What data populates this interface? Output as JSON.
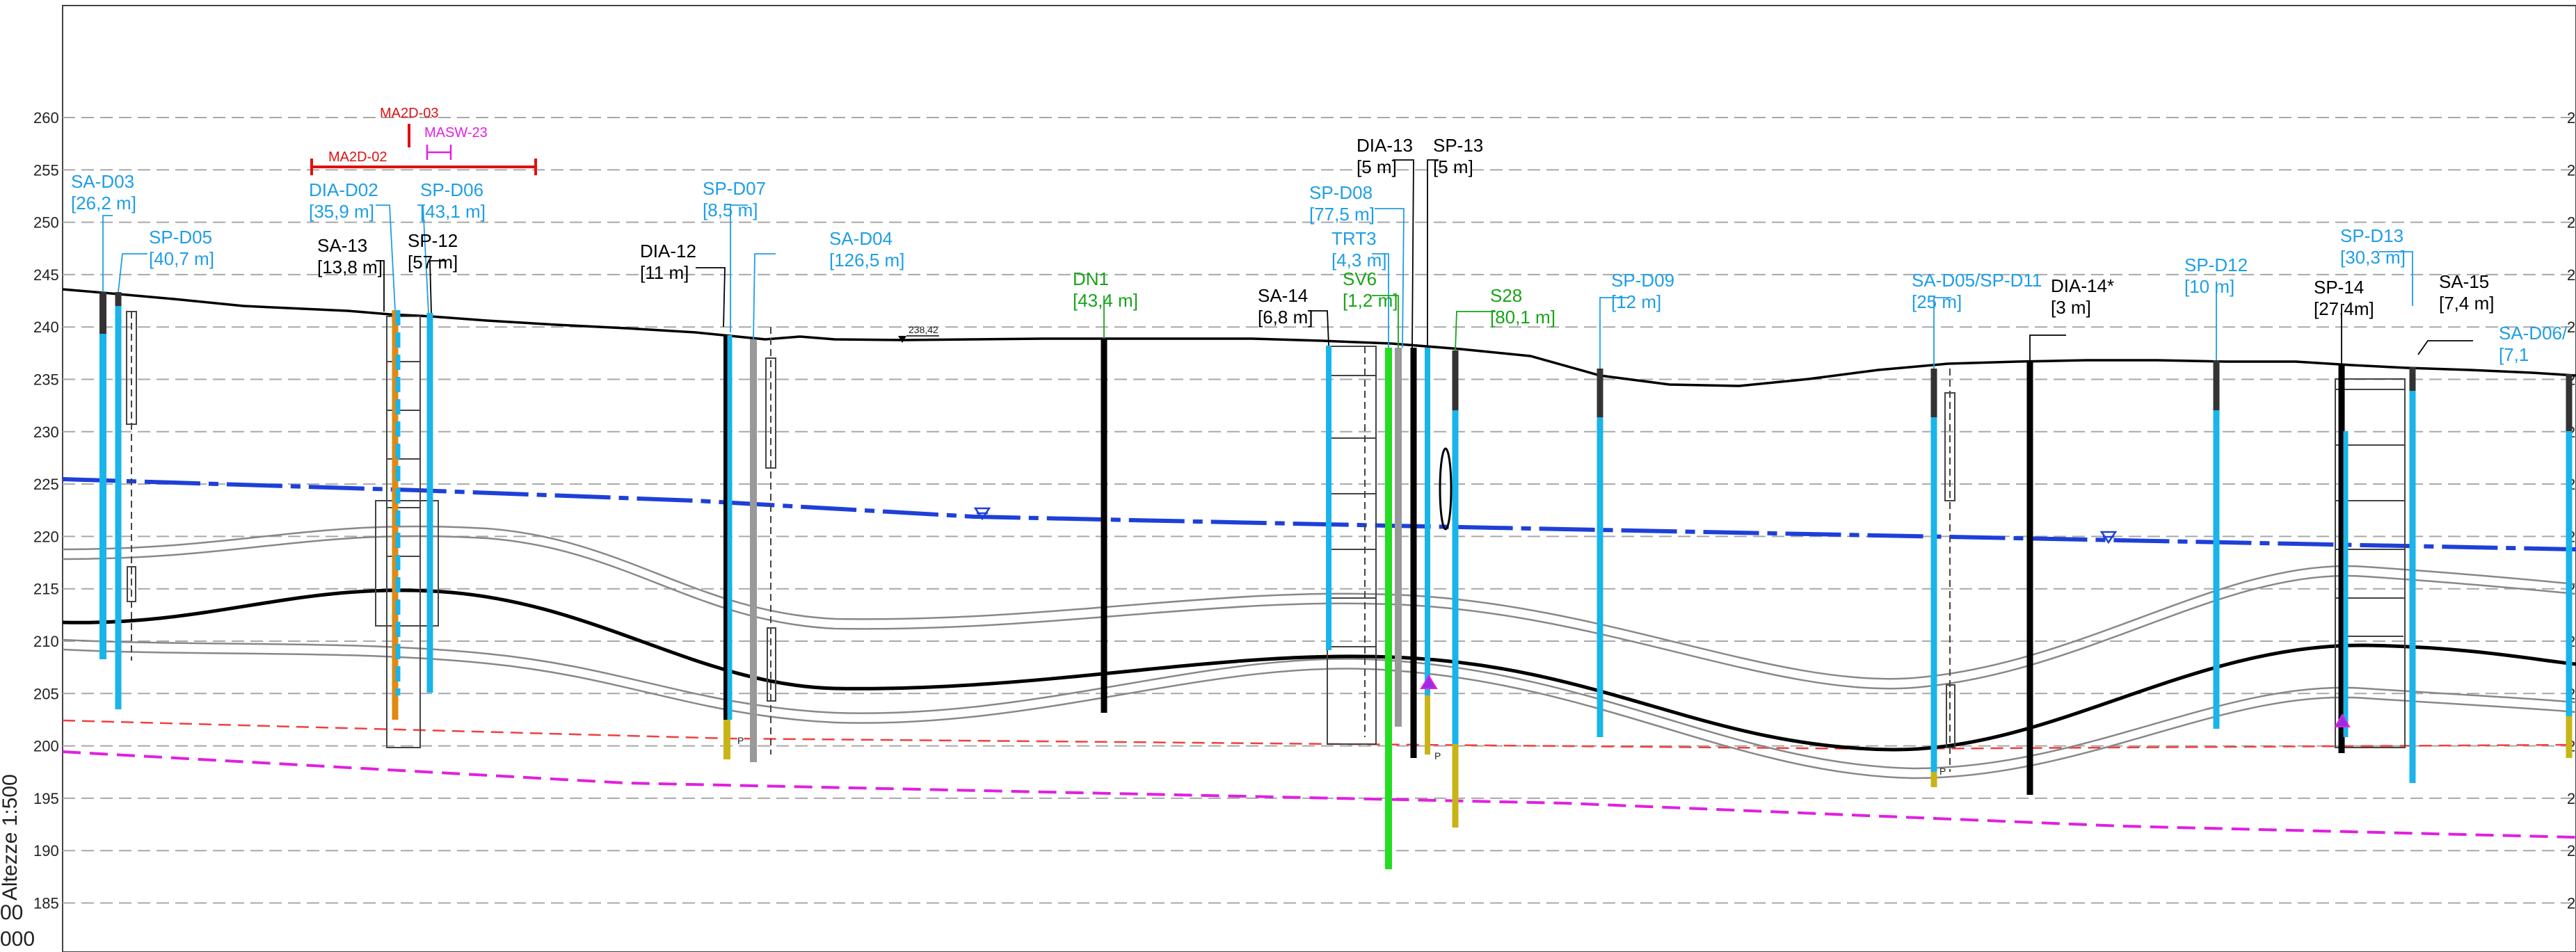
{
  "axis": {
    "elevations": [
      "260",
      "255",
      "250",
      "245",
      "240",
      "235",
      "230",
      "225",
      "220",
      "215",
      "210",
      "205",
      "200",
      "195",
      "190",
      "185"
    ],
    "right_ticks": [
      "2"
    ],
    "scale_label": "Altezze 1:500",
    "scale_rest": [
      "00",
      "000"
    ]
  },
  "ground_point": "238,42",
  "boreholes": [
    {
      "id": "sa-d03",
      "name": "SA-D03",
      "depth": "[26,2 m]",
      "color": "#1e9ee6"
    },
    {
      "id": "sp-d05",
      "name": "SP-D05",
      "depth": "[40,7 m]",
      "color": "#1e9ee6"
    },
    {
      "id": "dia-d02",
      "name": "DIA-D02",
      "depth": "[35,9 m]",
      "color": "#1e9ee6"
    },
    {
      "id": "sp-d06",
      "name": "SP-D06",
      "depth": "[43,1 m]",
      "color": "#1e9ee6"
    },
    {
      "id": "sa-13",
      "name": "SA-13",
      "depth": "[13,8 m]",
      "color": "#000000"
    },
    {
      "id": "sp-12",
      "name": "SP-12",
      "depth": "[57 m]",
      "color": "#000000"
    },
    {
      "id": "dia-12",
      "name": "DIA-12",
      "depth": "[11 m]",
      "color": "#000000"
    },
    {
      "id": "sp-d07",
      "name": "SP-D07",
      "depth": "[8,5 m]",
      "color": "#1e9ee6"
    },
    {
      "id": "sa-d04",
      "name": "SA-D04",
      "depth": "[126,5 m]",
      "color": "#1e9ee6"
    },
    {
      "id": "dn1",
      "name": "DN1",
      "depth": "[43,4 m]",
      "color": "#18a418"
    },
    {
      "id": "sa-14",
      "name": "SA-14",
      "depth": "[6,8 m]",
      "color": "#000000"
    },
    {
      "id": "dia-13",
      "name": "DIA-13",
      "depth": "[5 m]",
      "color": "#000000"
    },
    {
      "id": "sp-13",
      "name": "SP-13",
      "depth": "[5 m]",
      "color": "#000000"
    },
    {
      "id": "sp-d08",
      "name": "SP-D08",
      "depth": "[77,5 m]",
      "color": "#1e9ee6"
    },
    {
      "id": "trt3",
      "name": "TRT3",
      "depth": "[4,3 m]",
      "color": "#1e9ee6"
    },
    {
      "id": "sv6",
      "name": "SV6",
      "depth": "[1,2 m]",
      "color": "#18a418"
    },
    {
      "id": "s28",
      "name": "S28",
      "depth": "[80,1 m]",
      "color": "#18a418"
    },
    {
      "id": "sp-d09",
      "name": "SP-D09",
      "depth": "[12 m]",
      "color": "#1e9ee6"
    },
    {
      "id": "sa-d05-sp-d11",
      "name": "SA-D05/SP-D11",
      "depth": "[25 m]",
      "color": "#1e9ee6"
    },
    {
      "id": "dia-14",
      "name": "DIA-14*",
      "depth": "[3 m]",
      "color": "#000000"
    },
    {
      "id": "sp-d12",
      "name": "SP-D12",
      "depth": "[10 m]",
      "color": "#1e9ee6"
    },
    {
      "id": "sp-d13",
      "name": "SP-D13",
      "depth": "[30,3 m]",
      "color": "#1e9ee6"
    },
    {
      "id": "sp-14",
      "name": "SP-14",
      "depth": "[27,4m]",
      "color": "#000000"
    },
    {
      "id": "sa-15",
      "name": "SA-15",
      "depth": "[7,4 m]",
      "color": "#000000"
    },
    {
      "id": "sa-d06",
      "name": "SA-D06/",
      "depth": "[7,1",
      "color": "#1e9ee6"
    }
  ],
  "geophysics": [
    {
      "id": "ma2d-03",
      "name": "MA2D-03",
      "color": "#e01010"
    },
    {
      "id": "masw-23",
      "name": "MASW-23",
      "color": "#e020e0"
    },
    {
      "id": "ma2d-02",
      "name": "MA2D-02",
      "color": "#e01010"
    }
  ],
  "piezometer_marks": [
    "P",
    "P",
    "P"
  ]
}
